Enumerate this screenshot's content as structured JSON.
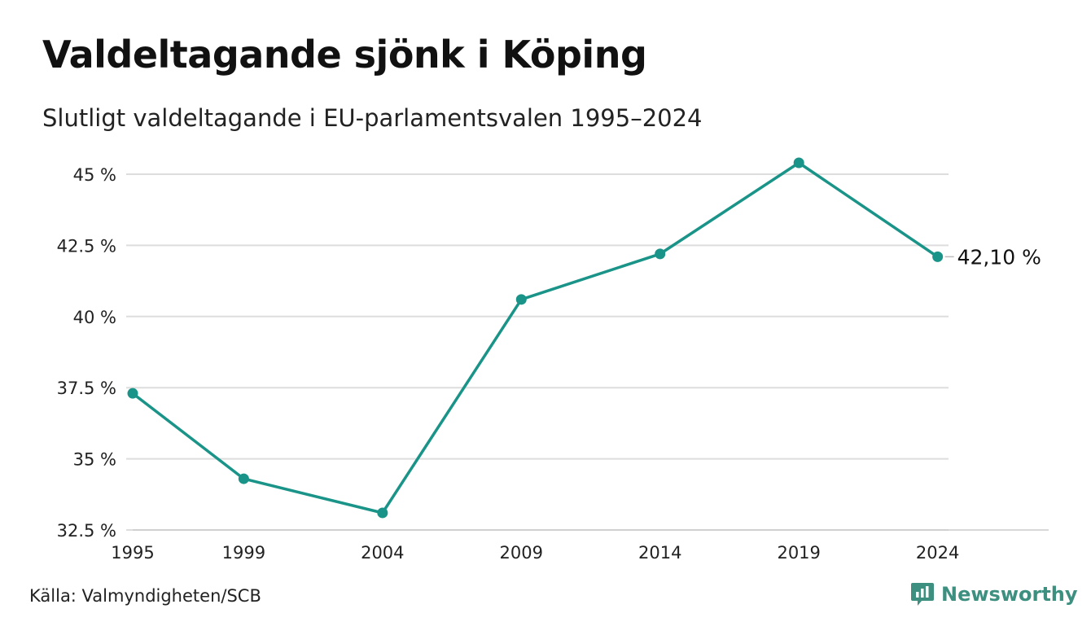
{
  "title": "Valdeltagande sjönk i Köping",
  "subtitle": "Slutligt valdeltagande i EU-parlamentsvalen 1995–2024",
  "source": "Källa: Valmyndigheten/SCB",
  "brand": {
    "name": "Newsworthy",
    "icon": "newsworthy-logo-icon",
    "color": "#3d8f80"
  },
  "chart_data": {
    "type": "line",
    "title": "Valdeltagande sjönk i Köping",
    "subtitle": "Slutligt valdeltagande i EU-parlamentsvalen 1995–2024",
    "xlabel": "",
    "ylabel": "",
    "categories": [
      "1995",
      "1999",
      "2004",
      "2009",
      "2014",
      "2019",
      "2024"
    ],
    "x": [
      1995,
      1999,
      2004,
      2009,
      2014,
      2019,
      2024
    ],
    "xlim": [
      1995,
      2028
    ],
    "ylim": [
      32.5,
      45.4
    ],
    "yticks": [
      32.5,
      35,
      37.5,
      40,
      42.5,
      45
    ],
    "ytick_labels": [
      "32.5 %",
      "35 %",
      "37.5 %",
      "40 %",
      "42.5 %",
      "45 %"
    ],
    "series": [
      {
        "values": [
          37.3,
          34.3,
          33.1,
          40.6,
          42.2,
          45.4,
          42.1
        ]
      }
    ],
    "end_label": "42,10 %",
    "color": "#1a9488",
    "gridline_color": "#dddddd",
    "grid": "horizontal"
  }
}
